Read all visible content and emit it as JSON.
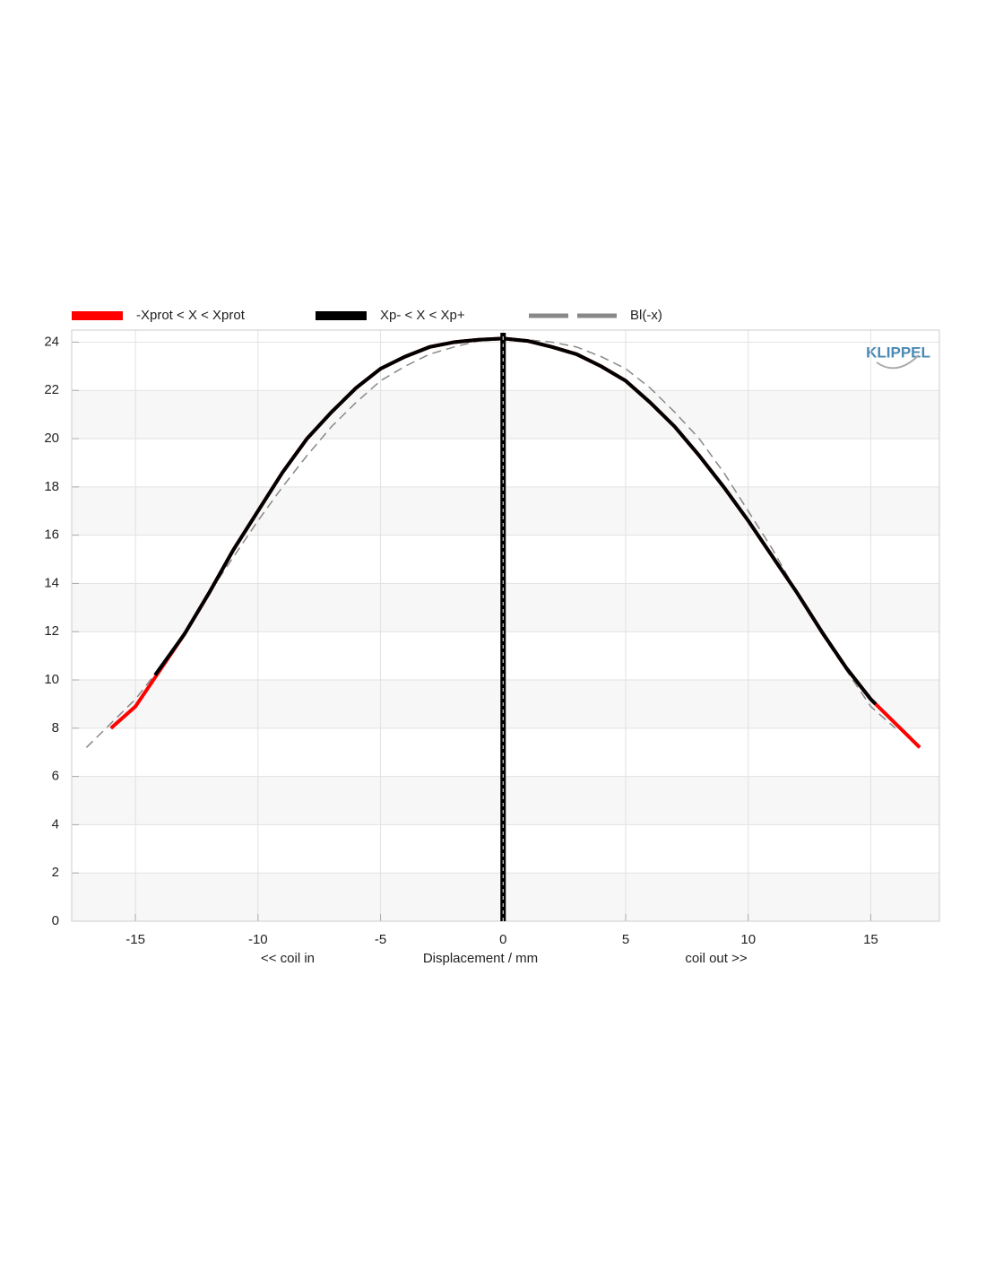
{
  "chart_data": {
    "type": "line",
    "x_label_left": "<< coil in",
    "x_label": "Displacement / mm",
    "x_label_right": "coil out >>",
    "logo": "KLIPPEL",
    "xlim": [
      -17.6,
      17.8
    ],
    "xticks": [
      -15,
      -10,
      -5,
      0,
      5,
      10,
      15
    ],
    "ylim": [
      0,
      24.5
    ],
    "yticks": [
      0,
      2,
      4,
      6,
      8,
      10,
      12,
      14,
      16,
      18,
      20,
      22,
      24
    ],
    "grid": true,
    "vline_x": 0,
    "series": [
      {
        "name": "-Xprot < X < Xprot",
        "color": "#ff0000",
        "dash": false,
        "x": [
          -16,
          -15,
          -14,
          -13,
          -12,
          -11,
          -10,
          -9,
          -8,
          -7,
          -6,
          -5,
          -4,
          -3,
          -2,
          -1,
          0,
          1,
          2,
          3,
          4,
          5,
          6,
          7,
          8,
          9,
          10,
          11,
          12,
          13,
          14,
          15,
          16,
          17
        ],
        "values": [
          8.0,
          8.9,
          10.4,
          11.9,
          13.6,
          15.4,
          17.0,
          18.6,
          20.0,
          21.1,
          22.1,
          22.9,
          23.4,
          23.8,
          24.0,
          24.1,
          24.15,
          24.05,
          23.8,
          23.5,
          23.0,
          22.4,
          21.5,
          20.5,
          19.3,
          18.0,
          16.6,
          15.1,
          13.6,
          12.0,
          10.5,
          9.2,
          8.2,
          7.2
        ]
      },
      {
        "name": "Xp- < X < Xp+",
        "color": "#000000",
        "dash": false,
        "x": [
          -14.2,
          -13,
          -12,
          -11,
          -10,
          -9,
          -8,
          -7,
          -6,
          -5,
          -4,
          -3,
          -2,
          -1,
          0,
          1,
          2,
          3,
          4,
          5,
          6,
          7,
          8,
          9,
          10,
          11,
          12,
          13,
          14,
          15,
          15.2
        ],
        "values": [
          10.2,
          11.9,
          13.6,
          15.4,
          17.0,
          18.6,
          20.0,
          21.1,
          22.1,
          22.9,
          23.4,
          23.8,
          24.0,
          24.1,
          24.15,
          24.05,
          23.8,
          23.5,
          23.0,
          22.4,
          21.5,
          20.5,
          19.3,
          18.0,
          16.6,
          15.1,
          13.6,
          12.0,
          10.5,
          9.2,
          9.0
        ]
      },
      {
        "name": "Bl(-x)",
        "color": "#888888",
        "dash": true,
        "x": [
          -17,
          -16,
          -15,
          -14,
          -13,
          -12,
          -11,
          -10,
          -9,
          -8,
          -7,
          -6,
          -5,
          -4,
          -3,
          -2,
          -1,
          0,
          1,
          2,
          3,
          4,
          5,
          6,
          7,
          8,
          9,
          10,
          11,
          12,
          13,
          14,
          15,
          16
        ],
        "values": [
          7.2,
          8.2,
          9.2,
          10.5,
          12.0,
          13.6,
          15.1,
          16.6,
          18.0,
          19.3,
          20.5,
          21.5,
          22.4,
          23.0,
          23.5,
          23.8,
          24.05,
          24.15,
          24.1,
          24.0,
          23.8,
          23.4,
          22.9,
          22.1,
          21.1,
          20.0,
          18.6,
          17.0,
          15.4,
          13.6,
          11.9,
          10.4,
          8.9,
          8.0
        ]
      }
    ]
  }
}
